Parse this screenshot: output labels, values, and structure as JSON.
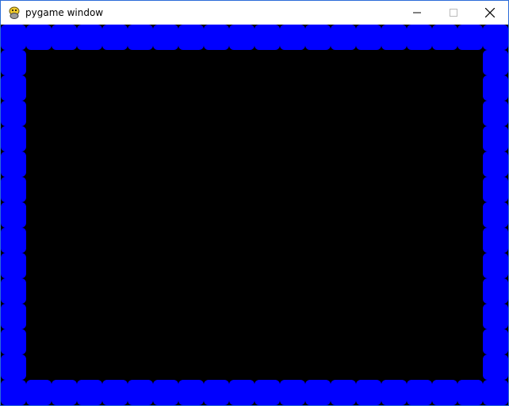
{
  "window": {
    "title": "pygame window",
    "icon": "pygame-snake-icon"
  },
  "controls": {
    "minimize": "minimize-icon",
    "maximize": "maximize-icon",
    "close": "close-icon"
  },
  "game": {
    "grid_columns": 20,
    "grid_rows": 15,
    "background_color": "#000000",
    "wall_color": "#0000ff",
    "walls": "border"
  }
}
